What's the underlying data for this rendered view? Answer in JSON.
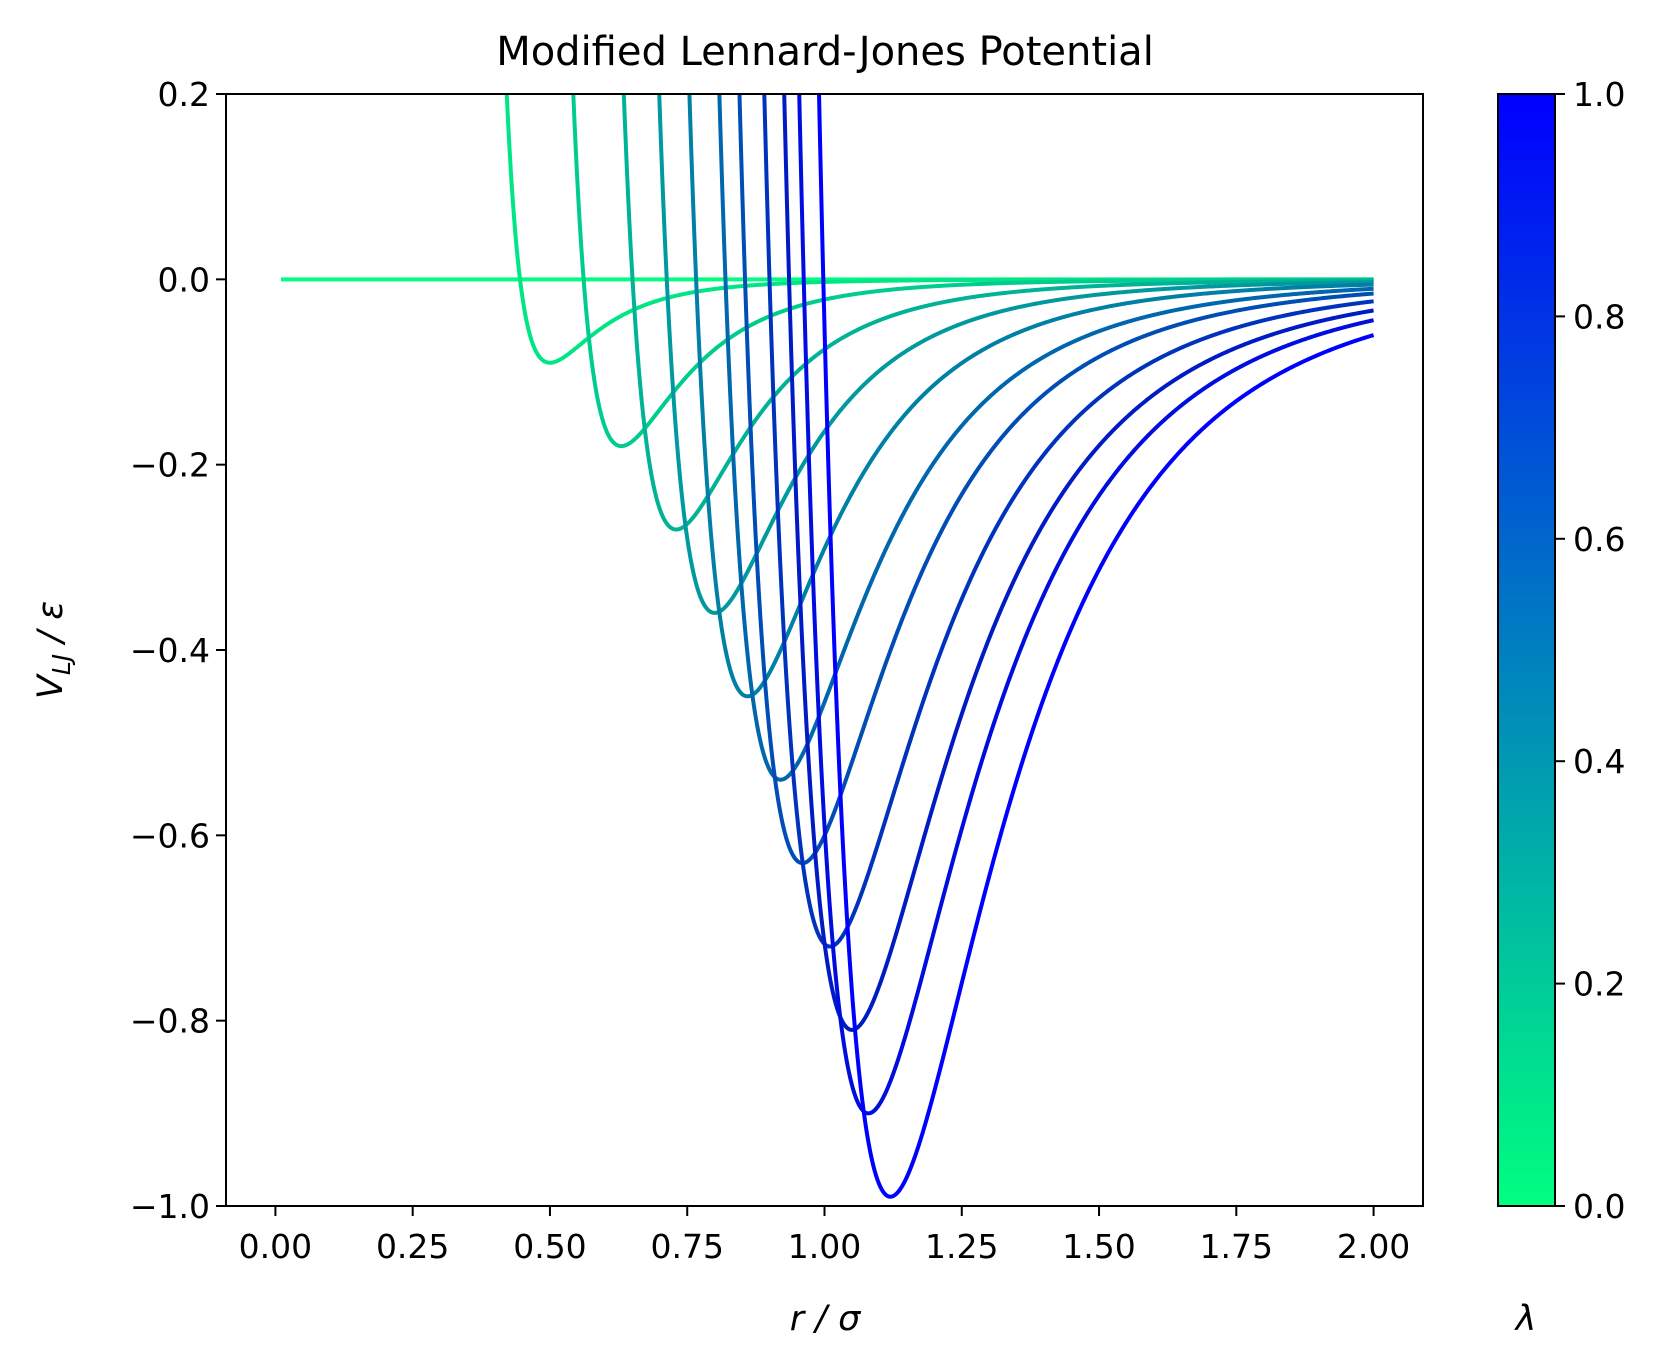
{
  "chart_data": {
    "type": "line",
    "title": "Modified Lennard-Jones Potential",
    "xlabel": "r / σ",
    "ylabel": "V_LJ / ε",
    "xlim": [
      -0.09,
      2.09
    ],
    "ylim": [
      -1.0,
      0.2
    ],
    "x_ticks": [
      "0.00",
      "0.25",
      "0.50",
      "0.75",
      "1.00",
      "1.25",
      "1.50",
      "1.75",
      "2.00"
    ],
    "y_ticks": [
      "−1.0",
      "−0.8",
      "−0.6",
      "−0.4",
      "−0.2",
      "0.0",
      "0.2"
    ],
    "x_range": [
      0.01,
      2.0
    ],
    "grid": false,
    "legend": "none",
    "colorbar": {
      "label": "λ",
      "range": [
        0.0,
        1.0
      ],
      "ticks": [
        "0.0",
        "0.2",
        "0.4",
        "0.6",
        "0.8",
        "1.0"
      ],
      "colormap": "winter",
      "color_low": "#00ff80",
      "color_high": "#0000ff"
    },
    "series": [
      {
        "lambda": 0.0,
        "min_r": null,
        "min_v": 0.0,
        "color": "#00ff80"
      },
      {
        "lambda": 0.1,
        "min_r": 0.5,
        "min_v": -0.09,
        "color": "#00e687"
      },
      {
        "lambda": 0.2,
        "min_r": 0.63,
        "min_v": -0.18,
        "color": "#00cc8f"
      },
      {
        "lambda": 0.3,
        "min_r": 0.73,
        "min_v": -0.27,
        "color": "#00b396"
      },
      {
        "lambda": 0.4,
        "min_r": 0.8,
        "min_v": -0.36,
        "color": "#00999e"
      },
      {
        "lambda": 0.5,
        "min_r": 0.86,
        "min_v": -0.45,
        "color": "#0080a5"
      },
      {
        "lambda": 0.6,
        "min_r": 0.92,
        "min_v": -0.54,
        "color": "#0066ad"
      },
      {
        "lambda": 0.7,
        "min_r": 0.96,
        "min_v": -0.63,
        "color": "#004db5"
      },
      {
        "lambda": 0.8,
        "min_r": 1.01,
        "min_v": -0.72,
        "color": "#0033bc"
      },
      {
        "lambda": 0.9,
        "min_r": 1.05,
        "min_v": -0.81,
        "color": "#001ac4"
      },
      {
        "lambda": 0.95,
        "min_r": 1.08,
        "min_v": -0.9,
        "color": "#000ddf"
      },
      {
        "lambda": 1.0,
        "min_r": 1.12,
        "min_v": -0.99,
        "color": "#0000ff"
      }
    ]
  }
}
